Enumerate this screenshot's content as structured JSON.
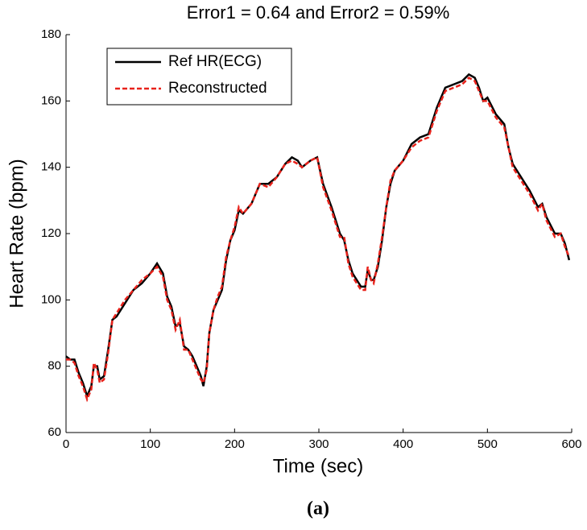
{
  "chart_data": {
    "type": "line",
    "title": "Error1 = 0.64 and Error2 = 0.59%",
    "x_label": "Time (sec)",
    "y_label": "Heart Rate (bpm)",
    "caption": "(a)",
    "x": [
      0,
      5,
      10,
      15,
      20,
      25,
      30,
      33,
      37,
      40,
      45,
      50,
      55,
      60,
      70,
      80,
      90,
      100,
      108,
      115,
      120,
      125,
      130,
      135,
      140,
      145,
      150,
      155,
      160,
      163,
      167,
      170,
      175,
      180,
      185,
      190,
      195,
      200,
      205,
      210,
      220,
      230,
      240,
      250,
      260,
      268,
      275,
      280,
      290,
      298,
      305,
      315,
      325,
      330,
      335,
      340,
      345,
      350,
      355,
      358,
      362,
      365,
      370,
      375,
      380,
      385,
      390,
      400,
      410,
      420,
      430,
      440,
      450,
      460,
      470,
      478,
      485,
      490,
      495,
      500,
      510,
      520,
      525,
      530,
      540,
      550,
      560,
      565,
      570,
      580,
      587,
      592,
      597
    ],
    "series": [
      {
        "name": "Ref HR(ECG)",
        "color": "#000000",
        "dash": false,
        "values": [
          83,
          82,
          82,
          78,
          75,
          71,
          74,
          80,
          80,
          76,
          77,
          85,
          94,
          95,
          99,
          103,
          105,
          108,
          111,
          108,
          101,
          98,
          92,
          93,
          86,
          85,
          83,
          80,
          77,
          74,
          80,
          90,
          97,
          100,
          103,
          112,
          118,
          121,
          127,
          126,
          129,
          135,
          135,
          137,
          141,
          143,
          142,
          140,
          142,
          143,
          135,
          128,
          120,
          118,
          112,
          108,
          106,
          104,
          104,
          109,
          106,
          106,
          110,
          118,
          128,
          135,
          139,
          142,
          147,
          149,
          150,
          158,
          164,
          165,
          166,
          168,
          167,
          164,
          160,
          161,
          156,
          153,
          146,
          141,
          137,
          133,
          128,
          129,
          125,
          120,
          120,
          117,
          112
        ]
      },
      {
        "name": "Reconstructed",
        "color": "#e8221b",
        "dash": true,
        "values": [
          82,
          82,
          81,
          77,
          74,
          70,
          73,
          81,
          79,
          75,
          76,
          84,
          94,
          96,
          100,
          103,
          106,
          108,
          110,
          107,
          100,
          97,
          91,
          94,
          85,
          85,
          82,
          79,
          76,
          75,
          79,
          90,
          97,
          101,
          104,
          113,
          118,
          122,
          128,
          126,
          129,
          135,
          134,
          137,
          141,
          142,
          141,
          140,
          142,
          143,
          134,
          127,
          119,
          119,
          111,
          107,
          105,
          103,
          103,
          110,
          106,
          105,
          111,
          119,
          128,
          136,
          139,
          142,
          146,
          148,
          149,
          157,
          163,
          164,
          165,
          167,
          166,
          163,
          160,
          160,
          155,
          152,
          146,
          140,
          136,
          132,
          127,
          129,
          124,
          119,
          120,
          116,
          113
        ]
      }
    ],
    "xlim": [
      0,
      600
    ],
    "ylim": [
      60,
      180
    ],
    "xticks": [
      0,
      100,
      200,
      300,
      400,
      500,
      600
    ],
    "yticks": [
      60,
      80,
      100,
      120,
      140,
      160,
      180
    ],
    "legend_position": "upper left"
  }
}
